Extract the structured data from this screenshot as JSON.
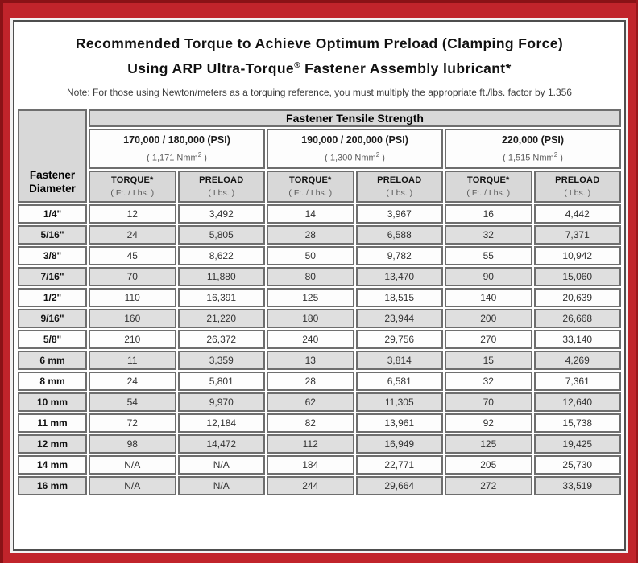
{
  "colors": {
    "frame_red": "#c1242b",
    "frame_dark_edge": "#8a1216",
    "header_gray": "#d8d8d8",
    "row_alt_gray": "#dfdfdf",
    "cell_border_gray": "#6e6e6e"
  },
  "title": {
    "line1": "Recommended Torque to Achieve Optimum Preload (Clamping Force)",
    "line2_pre": "Using ARP Ultra-Torque",
    "line2_sup": "®",
    "line2_post": " Fastener Assembly lubricant*"
  },
  "note": "Note: For those using Newton/meters as a torquing reference, you must multiply the appropriate ft./lbs. factor by 1.356",
  "table": {
    "tensile_header": "Fastener Tensile Strength",
    "diameter_header": {
      "line1": "Fastener",
      "line2": "Diameter"
    },
    "strength_groups": [
      {
        "psi": "170,000 / 180,000 (PSI)",
        "nmm_pre": "( 1,171 Nmm",
        "nmm_sup": "2",
        "nmm_post": " )"
      },
      {
        "psi": "190,000 / 200,000 (PSI)",
        "nmm_pre": "( 1,300 Nmm",
        "nmm_sup": "2",
        "nmm_post": " )"
      },
      {
        "psi": "220,000 (PSI)",
        "nmm_pre": "( 1,515 Nmm",
        "nmm_sup": "2",
        "nmm_post": " )"
      }
    ],
    "col_headers": {
      "torque_label": "TORQUE*",
      "torque_sub": "( Ft. / Lbs. )",
      "preload_label": "PRELOAD",
      "preload_sub": "( Lbs. )"
    },
    "rows": [
      {
        "diameter": "1/4\"",
        "values": [
          "12",
          "3,492",
          "14",
          "3,967",
          "16",
          "4,442"
        ]
      },
      {
        "diameter": "5/16\"",
        "values": [
          "24",
          "5,805",
          "28",
          "6,588",
          "32",
          "7,371"
        ]
      },
      {
        "diameter": "3/8\"",
        "values": [
          "45",
          "8,622",
          "50",
          "9,782",
          "55",
          "10,942"
        ]
      },
      {
        "diameter": "7/16\"",
        "values": [
          "70",
          "11,880",
          "80",
          "13,470",
          "90",
          "15,060"
        ]
      },
      {
        "diameter": "1/2\"",
        "values": [
          "110",
          "16,391",
          "125",
          "18,515",
          "140",
          "20,639"
        ]
      },
      {
        "diameter": "9/16\"",
        "values": [
          "160",
          "21,220",
          "180",
          "23,944",
          "200",
          "26,668"
        ]
      },
      {
        "diameter": "5/8\"",
        "values": [
          "210",
          "26,372",
          "240",
          "29,756",
          "270",
          "33,140"
        ]
      },
      {
        "diameter": "6 mm",
        "values": [
          "11",
          "3,359",
          "13",
          "3,814",
          "15",
          "4,269"
        ]
      },
      {
        "diameter": "8 mm",
        "values": [
          "24",
          "5,801",
          "28",
          "6,581",
          "32",
          "7,361"
        ]
      },
      {
        "diameter": "10 mm",
        "values": [
          "54",
          "9,970",
          "62",
          "11,305",
          "70",
          "12,640"
        ]
      },
      {
        "diameter": "11 mm",
        "values": [
          "72",
          "12,184",
          "82",
          "13,961",
          "92",
          "15,738"
        ]
      },
      {
        "diameter": "12 mm",
        "values": [
          "98",
          "14,472",
          "112",
          "16,949",
          "125",
          "19,425"
        ]
      },
      {
        "diameter": "14 mm",
        "values": [
          "N/A",
          "N/A",
          "184",
          "22,771",
          "205",
          "25,730"
        ]
      },
      {
        "diameter": "16 mm",
        "values": [
          "N/A",
          "N/A",
          "244",
          "29,664",
          "272",
          "33,519"
        ]
      }
    ]
  }
}
